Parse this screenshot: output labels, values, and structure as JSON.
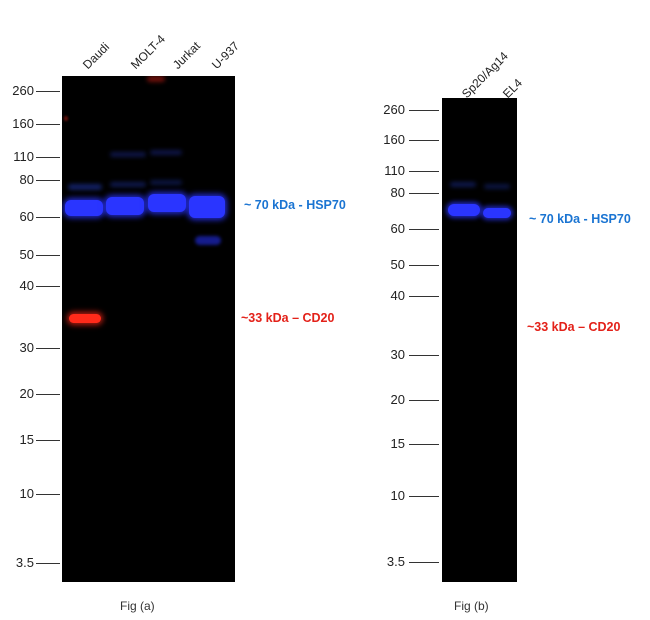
{
  "panel_a": {
    "lanes": [
      "Daudi",
      "MOLT-4",
      "Jurkat",
      "U-937"
    ],
    "markers": [
      "260",
      "160",
      "110",
      "80",
      "60",
      "50",
      "40",
      "30",
      "20",
      "15",
      "10",
      "3.5"
    ],
    "annotation_hsp70": "~ 70 kDa - HSP70",
    "annotation_cd20": "~33 kDa – CD20",
    "caption": "Fig (a)"
  },
  "panel_b": {
    "lanes": [
      "Sp20/Ag14",
      "EL4"
    ],
    "markers": [
      "260",
      "160",
      "110",
      "80",
      "60",
      "50",
      "40",
      "30",
      "20",
      "15",
      "10",
      "3.5"
    ],
    "annotation_hsp70": "~ 70 kDa - HSP70",
    "annotation_cd20": "~33 kDa – CD20",
    "caption": "Fig (b)"
  },
  "colors": {
    "hsp70": "#1a74d2",
    "cd20": "#e32119",
    "blue_band": "#2a35ff",
    "red_band": "#ff2a1a",
    "blot_bg": "#000000"
  }
}
